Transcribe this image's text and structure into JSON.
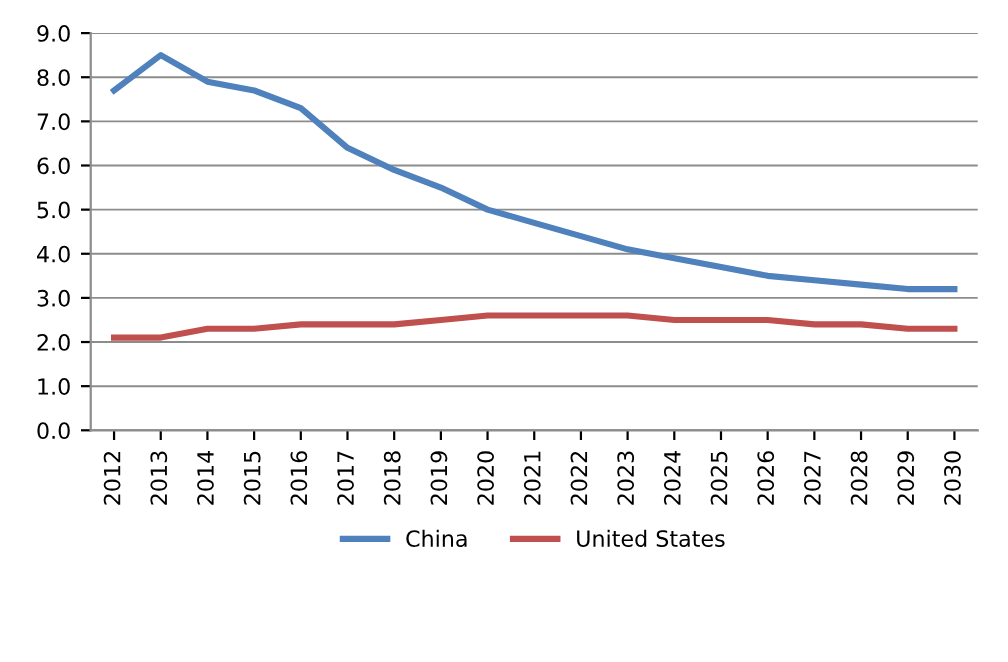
{
  "chart_data": {
    "type": "line",
    "categories": [
      "2012",
      "2013",
      "2014",
      "2015",
      "2016",
      "2017",
      "2018",
      "2019",
      "2020",
      "2021",
      "2022",
      "2023",
      "2024",
      "2025",
      "2026",
      "2027",
      "2028",
      "2029",
      "2030"
    ],
    "series": [
      {
        "name": "China",
        "color": "#4f81bd",
        "values": [
          7.7,
          8.5,
          7.9,
          7.7,
          7.3,
          6.4,
          5.9,
          5.5,
          5.0,
          4.7,
          4.4,
          4.1,
          3.9,
          3.7,
          3.5,
          3.4,
          3.3,
          3.2,
          3.2
        ]
      },
      {
        "name": "United States",
        "color": "#c0504d",
        "values": [
          2.1,
          2.1,
          2.3,
          2.3,
          2.4,
          2.4,
          2.4,
          2.5,
          2.6,
          2.6,
          2.6,
          2.6,
          2.5,
          2.5,
          2.5,
          2.4,
          2.4,
          2.3,
          2.3
        ]
      }
    ],
    "ylim": [
      0,
      9
    ],
    "yticks": [
      {
        "value": 0,
        "label": "0.0"
      },
      {
        "value": 1,
        "label": "1.0"
      },
      {
        "value": 2,
        "label": "2.0"
      },
      {
        "value": 3,
        "label": "3.0"
      },
      {
        "value": 4,
        "label": "4.0"
      },
      {
        "value": 5,
        "label": "5.0"
      },
      {
        "value": 6,
        "label": "6.0"
      },
      {
        "value": 7,
        "label": "7.0"
      },
      {
        "value": 8,
        "label": "8.0"
      },
      {
        "value": 9,
        "label": "9.0"
      }
    ],
    "grid": "y",
    "legend": "bottom",
    "marker": "none",
    "line_style": "solid"
  }
}
